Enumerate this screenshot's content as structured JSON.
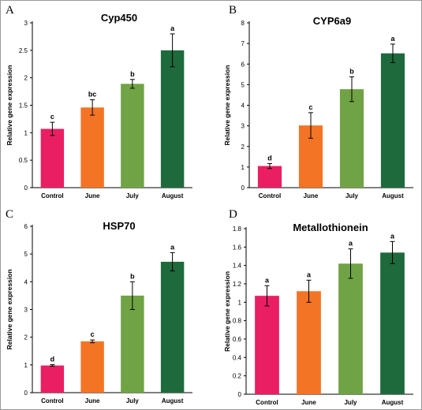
{
  "figure": {
    "colors": {
      "Control": "#e91e63",
      "June": "#f47425",
      "July": "#70a345",
      "August": "#1e6a3c"
    }
  },
  "chart_data": [
    {
      "panel": "A",
      "type": "bar",
      "title": "Cyp450",
      "xlabel": "",
      "ylabel": "Relative gene expression",
      "categories": [
        "Control",
        "June",
        "July",
        "August"
      ],
      "values": [
        1.07,
        1.46,
        1.89,
        2.5
      ],
      "errors": [
        0.12,
        0.14,
        0.08,
        0.3
      ],
      "significance": [
        "c",
        "bc",
        "b",
        "a"
      ],
      "ylim": [
        0,
        3
      ],
      "yticks": [
        "0",
        "0.5",
        "1",
        "1.5",
        "2",
        "2.5",
        "3"
      ]
    },
    {
      "panel": "B",
      "type": "bar",
      "title": "CYP6a9",
      "xlabel": "",
      "ylabel": "Relative gene expression",
      "categories": [
        "Control",
        "June",
        "July",
        "August"
      ],
      "values": [
        1.05,
        3.02,
        4.78,
        6.52
      ],
      "errors": [
        0.12,
        0.62,
        0.6,
        0.45
      ],
      "significance": [
        "d",
        "c",
        "b",
        "a"
      ],
      "ylim": [
        0,
        8
      ],
      "yticks": [
        "0",
        "1",
        "2",
        "3",
        "4",
        "5",
        "6",
        "7",
        "8"
      ]
    },
    {
      "panel": "C",
      "type": "bar",
      "title": "HSP70",
      "xlabel": "",
      "ylabel": "Relative gene expression",
      "categories": [
        "Control",
        "June",
        "July",
        "August"
      ],
      "values": [
        0.98,
        1.85,
        3.5,
        4.72
      ],
      "errors": [
        0.03,
        0.05,
        0.5,
        0.33
      ],
      "significance": [
        "d",
        "c",
        "b",
        "a"
      ],
      "ylim": [
        0,
        6
      ],
      "yticks": [
        "0",
        "1",
        "2",
        "3",
        "4",
        "5",
        "6"
      ]
    },
    {
      "panel": "D",
      "type": "bar",
      "title": "Metallothionein",
      "xlabel": "",
      "ylabel": "Relative gene expression",
      "categories": [
        "Control",
        "June",
        "July",
        "August"
      ],
      "values": [
        1.07,
        1.12,
        1.42,
        1.54
      ],
      "errors": [
        0.11,
        0.12,
        0.16,
        0.12
      ],
      "significance": [
        "a",
        "a",
        "a",
        "a"
      ],
      "ylim": [
        0,
        1.8
      ],
      "yticks": [
        "0",
        "0.2",
        "0.4",
        "0.6",
        "0.8",
        "1",
        "1.2",
        "1.4",
        "1.6",
        "1.8"
      ]
    }
  ]
}
